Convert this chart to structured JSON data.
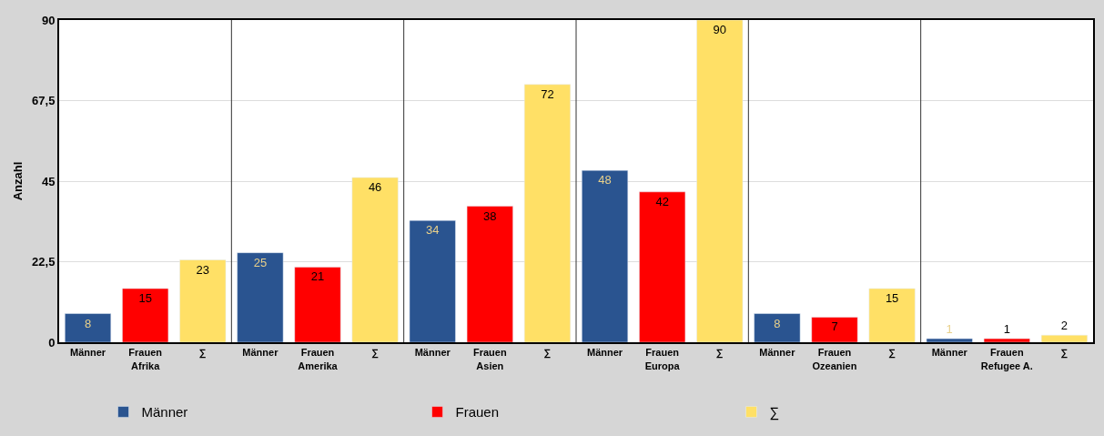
{
  "chart_data": {
    "type": "bar",
    "ylabel": "Anzahl",
    "categories": [
      "Afrika",
      "Amerika",
      "Asien",
      "Europa",
      "Ozeanien",
      "Refugee A."
    ],
    "series": [
      {
        "name": "Männer",
        "color": "#2a5490",
        "values": [
          8,
          25,
          34,
          48,
          8,
          1
        ]
      },
      {
        "name": "Frauen",
        "color": "#ff0000",
        "values": [
          15,
          21,
          38,
          42,
          7,
          1
        ]
      },
      {
        "name": "∑",
        "color": "#ffe066",
        "values": [
          23,
          46,
          72,
          90,
          15,
          2
        ]
      }
    ],
    "ylim": [
      0,
      90
    ],
    "yticks": [
      0,
      {
        "value": 22.5,
        "label": "22,5"
      },
      45,
      {
        "value": 67.5,
        "label": "67,5"
      },
      90
    ],
    "grid": "y",
    "legend": "bottom",
    "data_labels": true
  }
}
